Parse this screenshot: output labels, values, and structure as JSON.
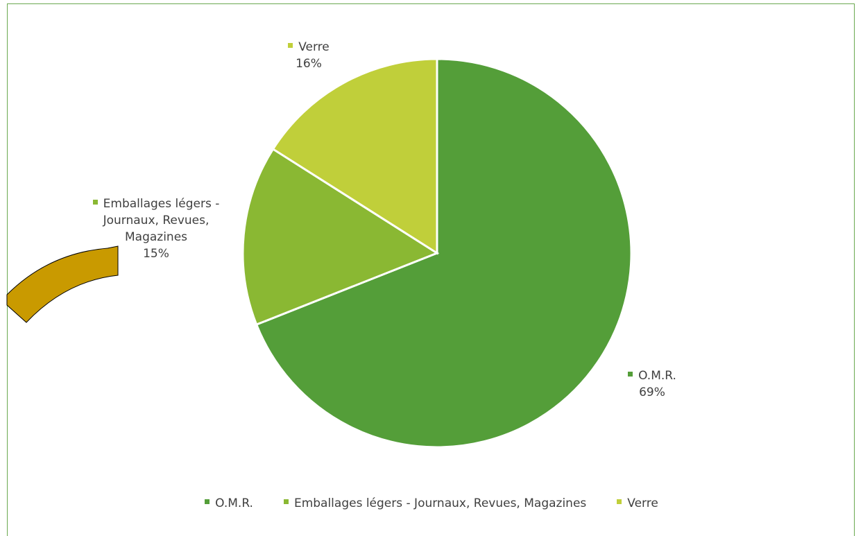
{
  "chart_data": {
    "type": "pie",
    "categories": [
      "O.M.R.",
      "Emballages légers - Journaux, Revues, Magazines",
      "Verre"
    ],
    "values": [
      69,
      15,
      16
    ],
    "value_labels": [
      "69%",
      "15%",
      "16%"
    ],
    "colors": [
      "#549e39",
      "#8ab833",
      "#c0cf3a"
    ],
    "legend": "bottom"
  }
}
